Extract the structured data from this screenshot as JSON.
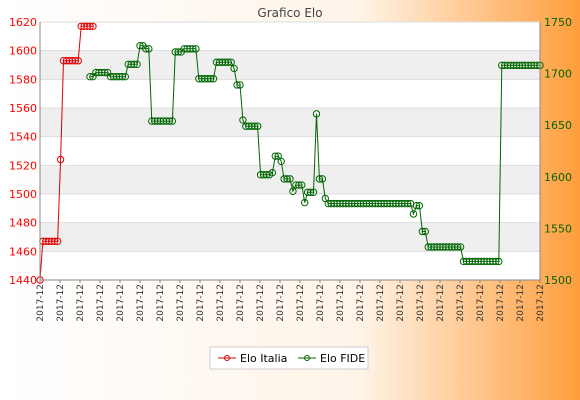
{
  "chart_data": {
    "type": "line",
    "title": "Grafico Elo",
    "xlabel": "",
    "ylabel": "",
    "y_left": {
      "min": 1440,
      "max": 1620,
      "step": 20,
      "color": "#ff0000",
      "ticks": [
        "1440",
        "1460",
        "1480",
        "1500",
        "1520",
        "1540",
        "1560",
        "1580",
        "1600",
        "1620"
      ]
    },
    "y_right": {
      "min": 1500,
      "max": 1750,
      "step": 50,
      "color": "#006600",
      "ticks": [
        "1500",
        "1550",
        "1600",
        "1650",
        "1700",
        "1750"
      ]
    },
    "grid": "horizontal-bands",
    "legend": {
      "position": "bottom"
    },
    "x_count": 170,
    "x_tick_label": "2017-12",
    "x_tick_count": 26,
    "series": [
      {
        "name": "Elo Italia",
        "axis": "left",
        "color": "#dd0000",
        "points": [
          [
            0,
            1440
          ],
          [
            1,
            1467
          ],
          [
            2,
            1467
          ],
          [
            3,
            1467
          ],
          [
            4,
            1467
          ],
          [
            5,
            1467
          ],
          [
            6,
            1467
          ],
          [
            7,
            1524
          ],
          [
            8,
            1593
          ],
          [
            9,
            1593
          ],
          [
            10,
            1593
          ],
          [
            11,
            1593
          ],
          [
            12,
            1593
          ],
          [
            13,
            1593
          ],
          [
            14,
            1617
          ],
          [
            15,
            1617
          ],
          [
            16,
            1617
          ],
          [
            17,
            1617
          ],
          [
            18,
            1617
          ]
        ]
      },
      {
        "name": "Elo FIDE",
        "axis": "right",
        "color": "#006600",
        "segments": [
          [
            17,
            18,
            1697
          ],
          [
            19,
            23,
            1701
          ],
          [
            24,
            29,
            1697
          ],
          [
            30,
            33,
            1709
          ],
          [
            34,
            35,
            1727
          ],
          [
            36,
            37,
            1724
          ],
          [
            38,
            45,
            1654
          ],
          [
            46,
            48,
            1721
          ],
          [
            49,
            53,
            1724
          ],
          [
            54,
            59,
            1695
          ],
          [
            60,
            65,
            1711
          ],
          [
            66,
            66,
            1705
          ],
          [
            67,
            68,
            1689
          ],
          [
            69,
            69,
            1655
          ],
          [
            70,
            72,
            1649
          ],
          [
            73,
            74,
            1649
          ],
          [
            75,
            78,
            1602
          ],
          [
            79,
            79,
            1604
          ],
          [
            80,
            81,
            1620
          ],
          [
            82,
            82,
            1615
          ],
          [
            83,
            85,
            1598
          ],
          [
            86,
            86,
            1586
          ],
          [
            87,
            88,
            1592
          ],
          [
            89,
            89,
            1592
          ],
          [
            90,
            90,
            1575
          ],
          [
            91,
            91,
            1585
          ],
          [
            92,
            93,
            1585
          ],
          [
            94,
            94,
            1661
          ],
          [
            95,
            96,
            1598
          ],
          [
            97,
            97,
            1579
          ],
          [
            98,
            126,
            1574
          ],
          [
            127,
            127,
            1564
          ],
          [
            128,
            129,
            1572
          ],
          [
            130,
            131,
            1547
          ],
          [
            132,
            143,
            1532
          ],
          [
            144,
            156,
            1518
          ],
          [
            157,
            170,
            1708
          ]
        ]
      }
    ]
  }
}
